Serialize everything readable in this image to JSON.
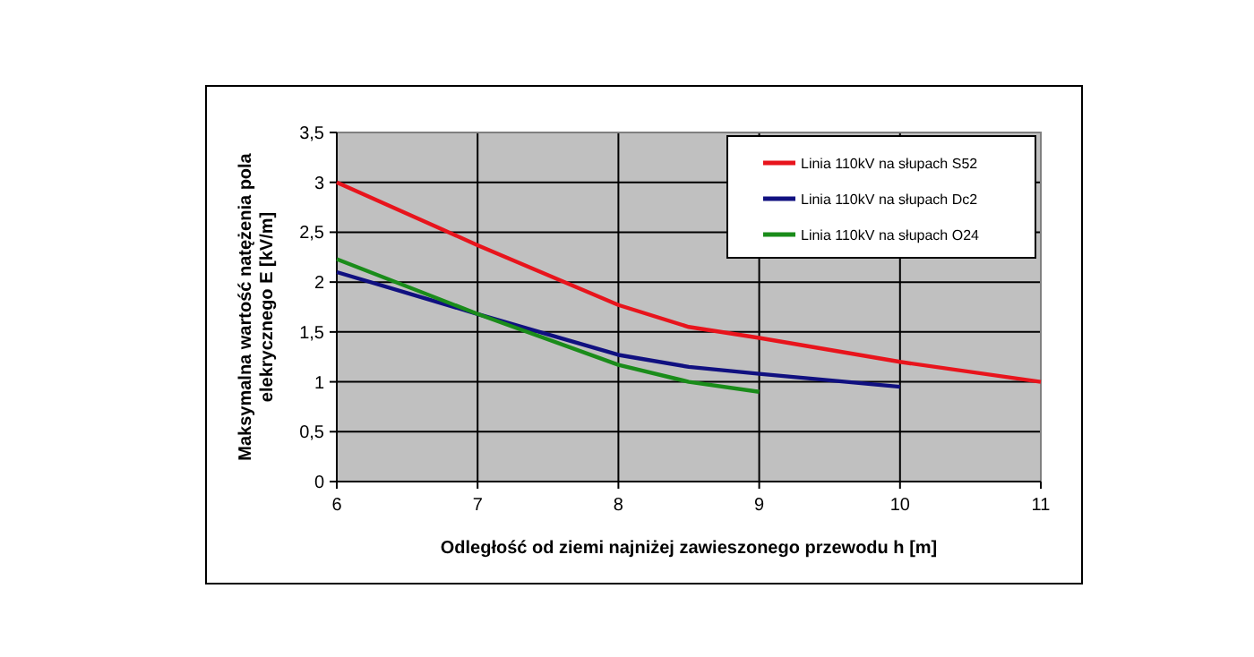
{
  "chart_data": {
    "type": "line",
    "xlabel": "Odległość od ziemi najniżej zawieszonego przewodu h [m]",
    "ylabel": "Maksymalna wartość natężenia pola\nelekrycznego E [kV/m]",
    "xlim": [
      6,
      11
    ],
    "xticks": [
      6,
      7,
      8,
      9,
      10,
      11
    ],
    "ylim": [
      0,
      3.5
    ],
    "yticks": [
      0,
      {
        "value": 0.5,
        "label": "0,5"
      },
      1,
      {
        "value": 1.5,
        "label": "1,5"
      },
      2,
      {
        "value": 2.5,
        "label": "2,5"
      },
      3,
      {
        "value": 3.5,
        "label": "3,5"
      }
    ],
    "grid": true,
    "legend": "top right",
    "marker": "none",
    "line_style": "solid",
    "series": [
      {
        "name": "Linia 110kV na słupach S52",
        "color": "#e8141c",
        "x": [
          6,
          7,
          8,
          8.5,
          9,
          10,
          11
        ],
        "values": [
          3.0,
          2.37,
          1.77,
          1.55,
          1.44,
          1.2,
          1.0
        ]
      },
      {
        "name": "Linia 110kV na słupach Dc2",
        "color": "#101080",
        "x": [
          6,
          7,
          8,
          8.5,
          9,
          10
        ],
        "values": [
          2.1,
          1.68,
          1.27,
          1.15,
          1.08,
          0.95
        ]
      },
      {
        "name": "Linia 110kV na słupach O24",
        "color": "#1a8c1a",
        "x": [
          6,
          7,
          8,
          8.5,
          9
        ],
        "values": [
          2.23,
          1.68,
          1.17,
          1.0,
          0.9
        ]
      }
    ]
  }
}
